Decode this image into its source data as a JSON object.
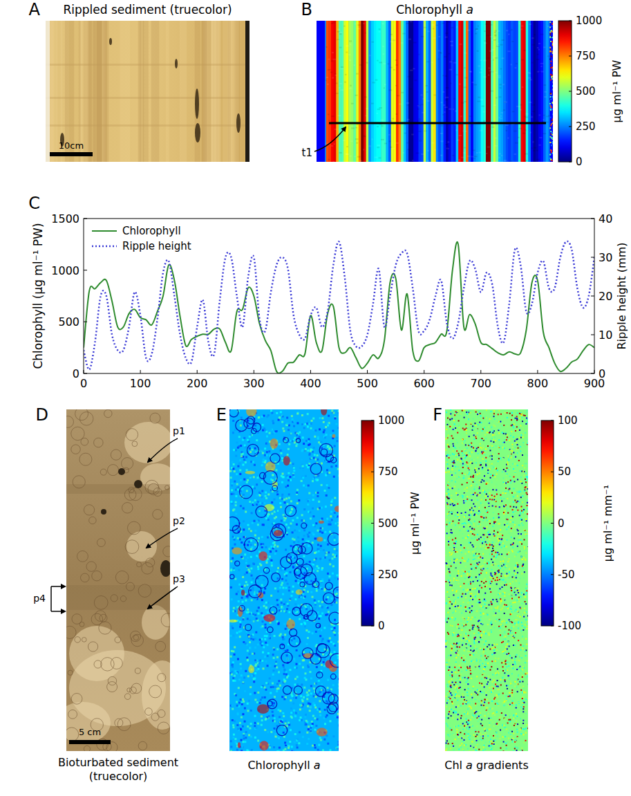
{
  "chart_data": {
    "type": "line",
    "y_label": "Chlorophyll (μg ml⁻¹ PW)",
    "y2_label": "Ripple height (mm)",
    "x": [
      0,
      10,
      20,
      30,
      40,
      50,
      60,
      70,
      80,
      90,
      100,
      110,
      120,
      130,
      140,
      150,
      160,
      170,
      180,
      190,
      200,
      210,
      220,
      230,
      240,
      250,
      260,
      270,
      280,
      290,
      300,
      310,
      320,
      330,
      340,
      350,
      360,
      370,
      380,
      390,
      400,
      410,
      420,
      430,
      440,
      450,
      460,
      470,
      480,
      490,
      500,
      510,
      520,
      530,
      540,
      550,
      560,
      570,
      580,
      590,
      600,
      610,
      620,
      630,
      640,
      650,
      660,
      670,
      680,
      690,
      700,
      710,
      720,
      730,
      740,
      750,
      760,
      770,
      780,
      790,
      800,
      810,
      820,
      830,
      840,
      850,
      860,
      870,
      880,
      890,
      900
    ],
    "xlim": [
      0,
      900
    ],
    "xticks": [
      0,
      100,
      200,
      300,
      400,
      500,
      600,
      700,
      800,
      900
    ],
    "ylim": [
      0,
      1500
    ],
    "yticks": [
      0,
      500,
      1000,
      1500
    ],
    "y2lim": [
      0,
      40
    ],
    "y2ticks": [
      0,
      10,
      20,
      30,
      40
    ],
    "legend": "upper left",
    "series": [
      {
        "name": "Chlorophyll",
        "color": "#2e8b2e",
        "line_style": "solid",
        "values": [
          250,
          800,
          820,
          880,
          900,
          700,
          450,
          450,
          580,
          620,
          540,
          520,
          470,
          600,
          750,
          1050,
          900,
          550,
          270,
          330,
          360,
          380,
          380,
          430,
          430,
          300,
          220,
          600,
          620,
          830,
          750,
          480,
          320,
          220,
          20,
          20,
          100,
          110,
          180,
          190,
          560,
          300,
          220,
          580,
          650,
          250,
          200,
          250,
          150,
          50,
          100,
          180,
          150,
          320,
          880,
          920,
          420,
          770,
          220,
          120,
          250,
          280,
          300,
          380,
          410,
          1000,
          1250,
          450,
          570,
          480,
          300,
          280,
          240,
          200,
          180,
          210,
          190,
          200,
          420,
          880,
          900,
          400,
          250,
          100,
          20,
          50,
          110,
          140,
          220,
          280,
          250
        ]
      },
      {
        "name": "Ripple height",
        "color": "#3a3ad6",
        "line_style": "dotted",
        "axis": "y2",
        "values": [
          6,
          1,
          8,
          20,
          20,
          10,
          6,
          6,
          12,
          21,
          15,
          4,
          5,
          14,
          26,
          29,
          20,
          10,
          4,
          3,
          12,
          19,
          8,
          5,
          19,
          30,
          30,
          20,
          12,
          25,
          30,
          14,
          11,
          21,
          28,
          30,
          27,
          15,
          10,
          9,
          15,
          17,
          12,
          16,
          28,
          34,
          25,
          11,
          7,
          7,
          10,
          18,
          27,
          12,
          20,
          28,
          31,
          31,
          22,
          11,
          11,
          14,
          20,
          24,
          13,
          9,
          13,
          22,
          29,
          27,
          21,
          26,
          23,
          12,
          8,
          18,
          32,
          28,
          16,
          18,
          26,
          29,
          22,
          22,
          30,
          34,
          32,
          22,
          17,
          20,
          30
        ]
      }
    ]
  },
  "figure": {
    "panels": [
      {
        "letter": "A",
        "title": "Rippled sediment (truecolor)",
        "scale_bar": "10cm"
      },
      {
        "letter": "B",
        "title": "Chlorophyll a",
        "annotation": "t1",
        "colorbar": {
          "label": "μg ml⁻¹ PW",
          "range": [
            0,
            1000
          ],
          "ticks": [
            0,
            250,
            500,
            750,
            1000
          ]
        }
      },
      {
        "letter": "C"
      },
      {
        "letter": "D",
        "caption": "Bioturbated sediment (truecolor)",
        "scale_bar": "5 cm",
        "annotations": [
          "p1",
          "p2",
          "p3",
          "p4"
        ]
      },
      {
        "letter": "E",
        "caption": "Chlorophyll a",
        "colorbar": {
          "label": "μg ml⁻¹ PW",
          "range": [
            0,
            1000
          ],
          "ticks": [
            0,
            250,
            500,
            750,
            1000
          ]
        }
      },
      {
        "letter": "F",
        "caption": "Chl a gradients",
        "colorbar": {
          "label": "μg ml⁻¹ mm⁻¹",
          "range": [
            -100,
            100
          ],
          "ticks": [
            -100,
            -50,
            0,
            50,
            100
          ]
        }
      }
    ]
  }
}
